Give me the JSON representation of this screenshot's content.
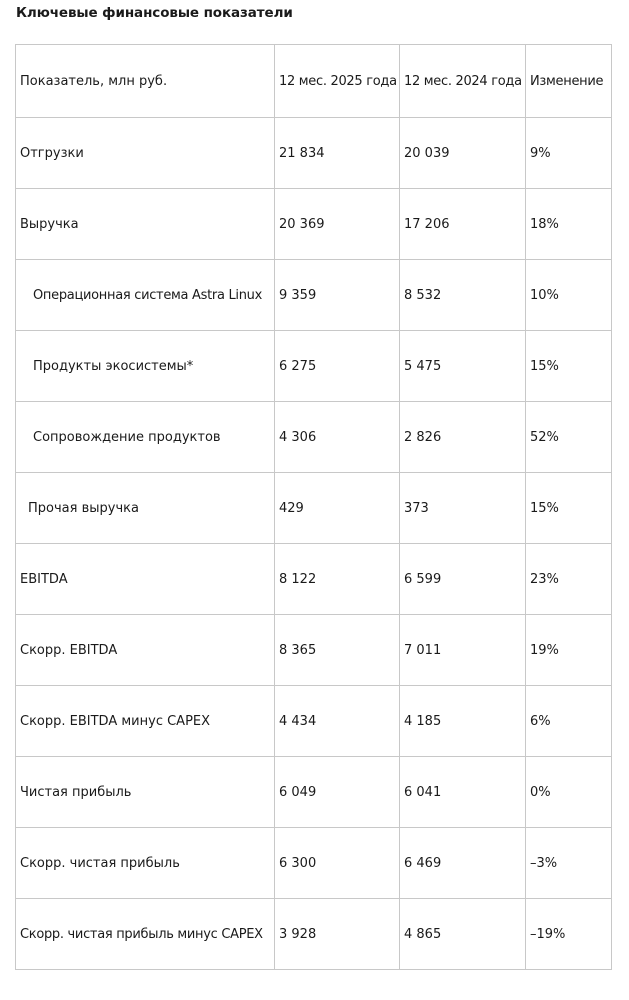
{
  "title": "Ключевые финансовые показатели",
  "table": {
    "headers": [
      "Показатель, млн руб.",
      "12 мес. 2025 года",
      "12 мес. 2024 года",
      "Изменение"
    ],
    "rows": [
      {
        "label": "Отгрузки",
        "y2025": "21 834",
        "y2024": "20 039",
        "change": "9%"
      },
      {
        "label": "Выручка",
        "y2025": "20 369",
        "y2024": "17 206",
        "change": "18%"
      },
      {
        "label": "Операционная система Astra Linux",
        "y2025": "9 359",
        "y2024": "8 532",
        "change": "10%"
      },
      {
        "label": "Продукты экосистемы*",
        "y2025": "6 275",
        "y2024": "5 475",
        "change": "15%"
      },
      {
        "label": "Сопровождение продуктов",
        "y2025": "4 306",
        "y2024": "2 826",
        "change": "52%"
      },
      {
        "label": "Прочая выручка",
        "y2025": "429",
        "y2024": "373",
        "change": "15%"
      },
      {
        "label": "EBITDA",
        "y2025": "8 122",
        "y2024": "6 599",
        "change": "23%"
      },
      {
        "label": "Скорр. EBITDA",
        "y2025": "8 365",
        "y2024": "7 011",
        "change": "19%"
      },
      {
        "label": "Скорр. EBITDA минус CAPEX",
        "y2025": "4 434",
        "y2024": "4 185",
        "change": "6%"
      },
      {
        "label": "Чистая прибыль",
        "y2025": "6 049",
        "y2024": "6 041",
        "change": "0%"
      },
      {
        "label": "Скорр. чистая прибыль",
        "y2025": "6 300",
        "y2024": "6 469",
        "change": "–3%"
      },
      {
        "label": "Скорр. чистая прибыль минус CAPEX",
        "y2025": "3 928",
        "y2024": "4 865",
        "change": "–19%"
      }
    ]
  }
}
